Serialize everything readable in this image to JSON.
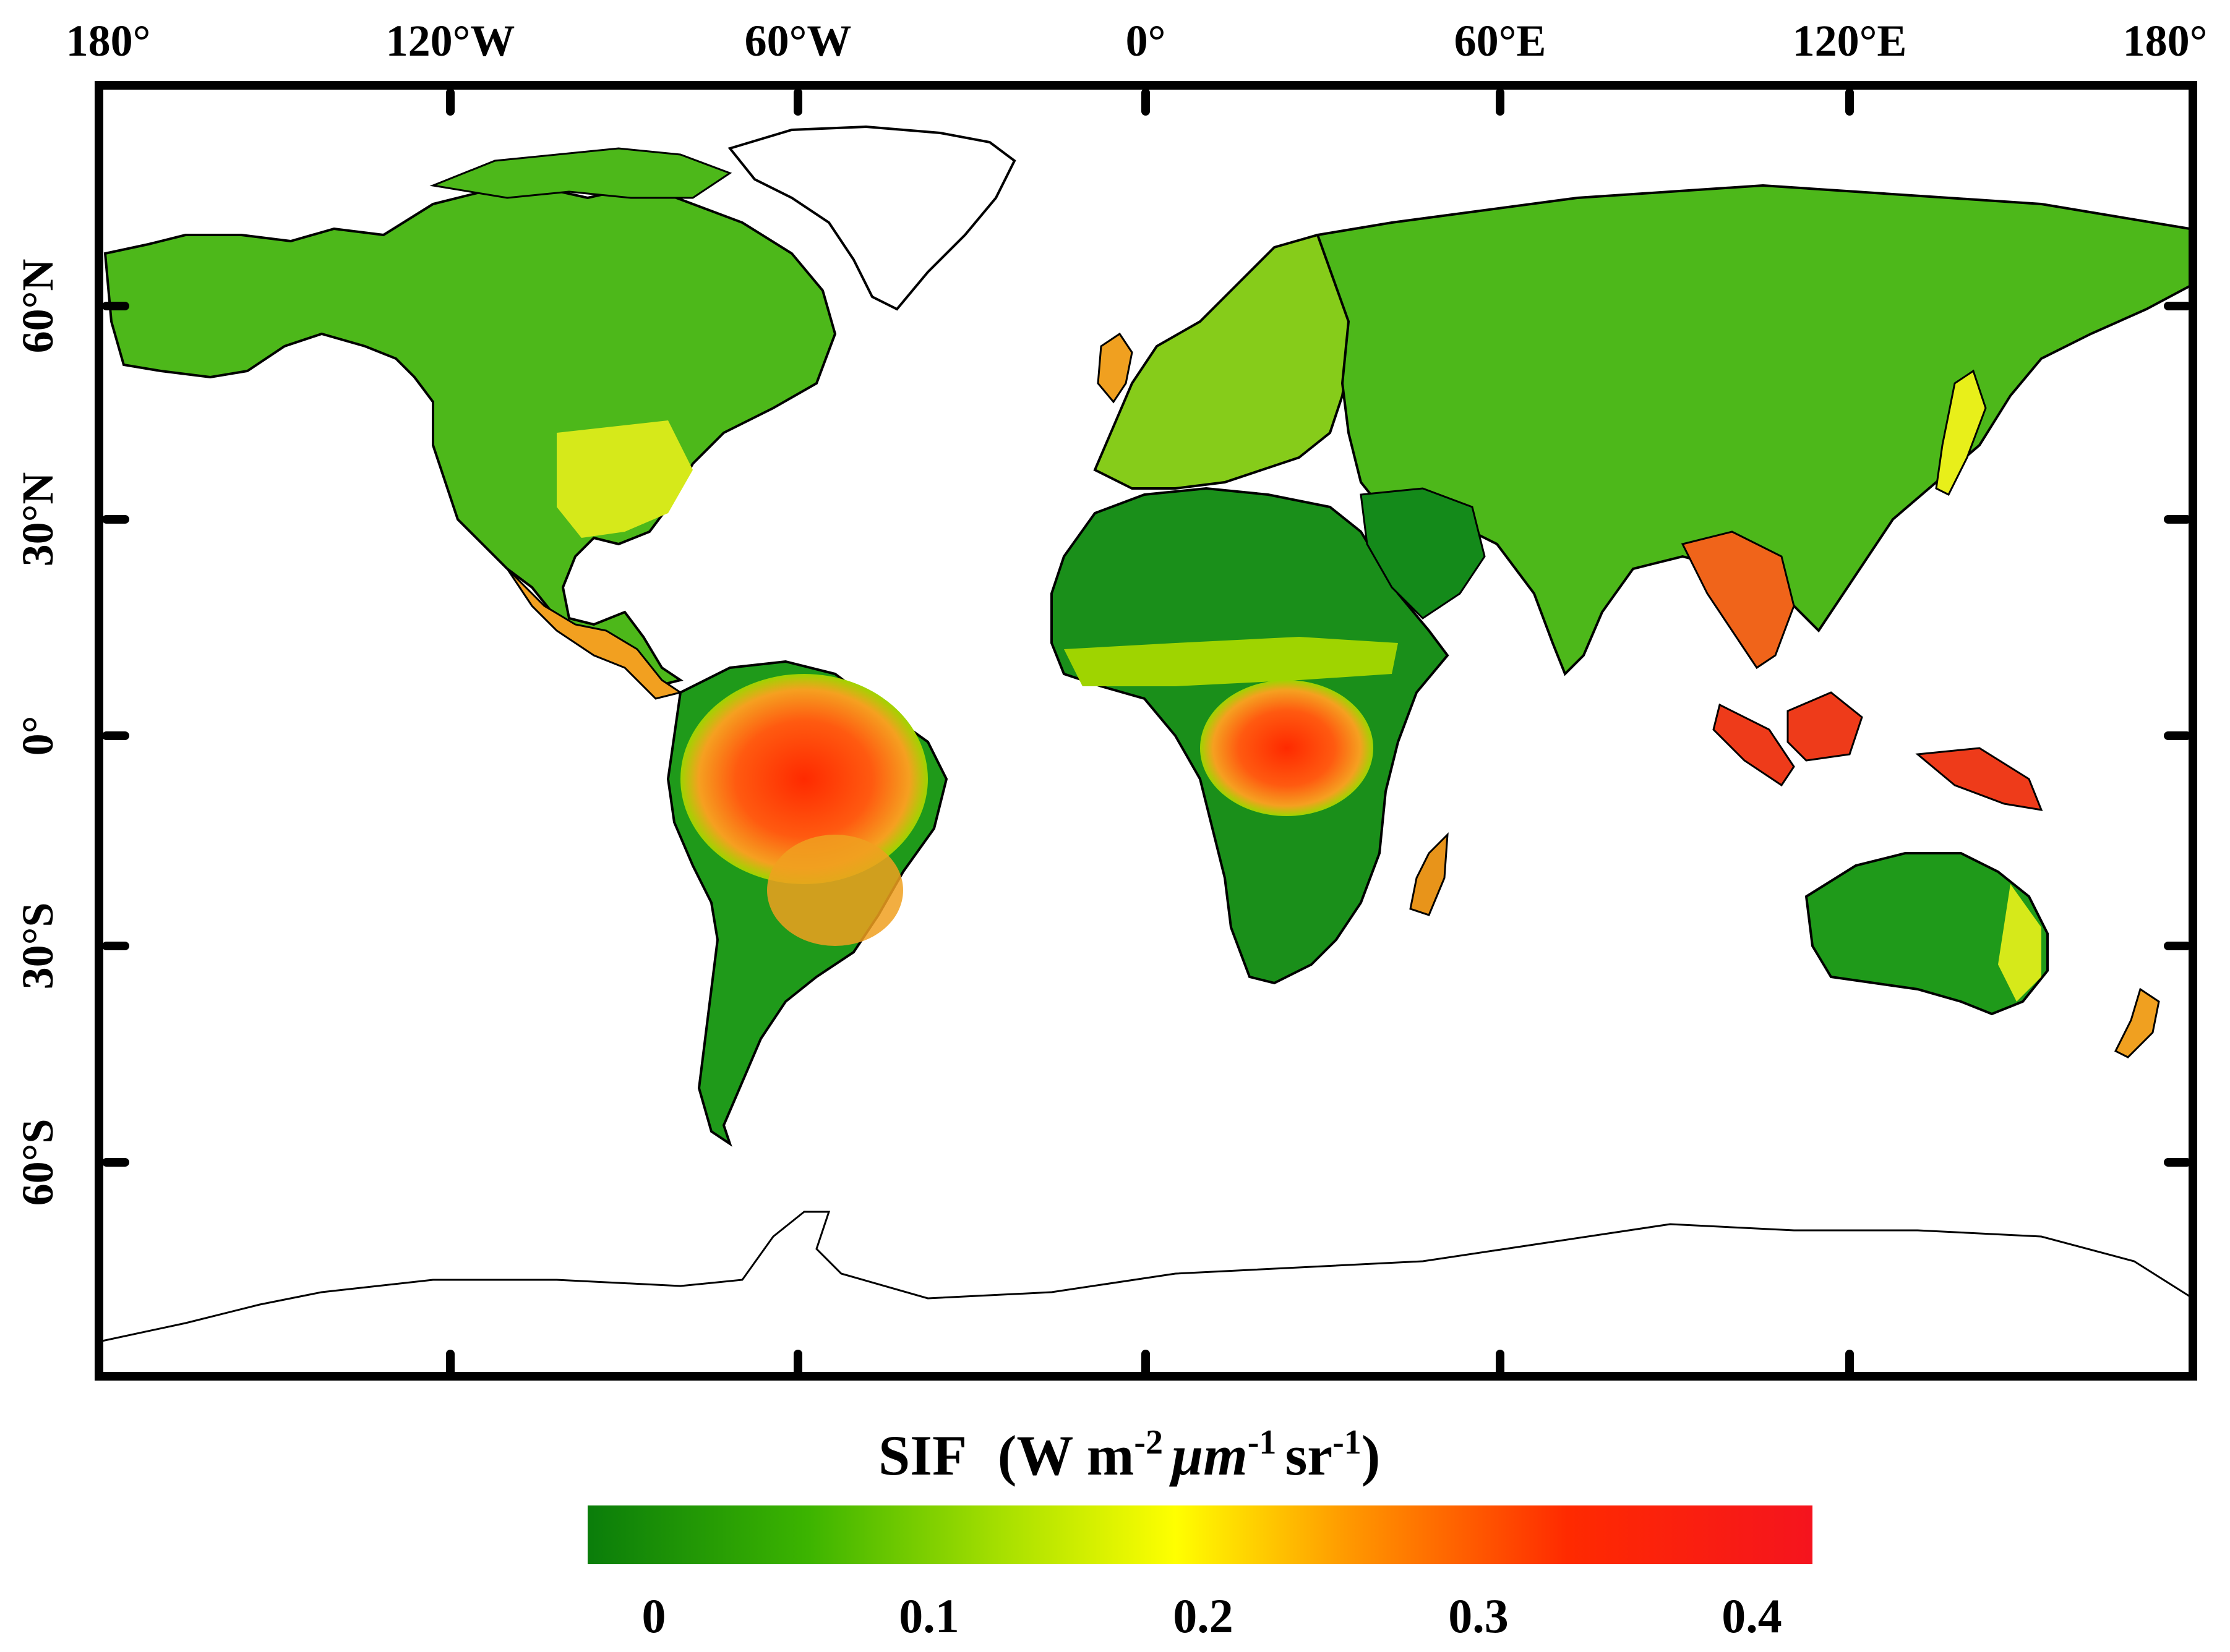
{
  "map": {
    "longitude_labels": [
      "180°",
      "120°W",
      "60°W",
      "0°",
      "60°E",
      "120°E",
      "180°"
    ],
    "latitude_labels": [
      "60°N",
      "30°N",
      "0°",
      "30°S",
      "60°S"
    ],
    "colors": {
      "land_low": "#1f8a1f",
      "land_mid": "#6cc417",
      "land_yellow": "#e8ef1a",
      "land_orange": "#f5a020",
      "land_high": "#e8141a",
      "ocean": "#ffffff",
      "frame": "#000000",
      "borders": "#000000"
    }
  },
  "legend": {
    "title_prefix": "SIF",
    "title_units": {
      "base1": "W m",
      "sup1": "-2",
      "base2": "μm",
      "sup2": "-1",
      "base3": "sr",
      "sup3": "-1"
    },
    "ticks": [
      "0",
      "0.1",
      "0.2",
      "0.3",
      "0.4"
    ],
    "color_stops": [
      "#0a7d0a",
      "#3cb400",
      "#a8e000",
      "#ffff00",
      "#ff9900",
      "#ff2a00",
      "#f5141e"
    ]
  }
}
